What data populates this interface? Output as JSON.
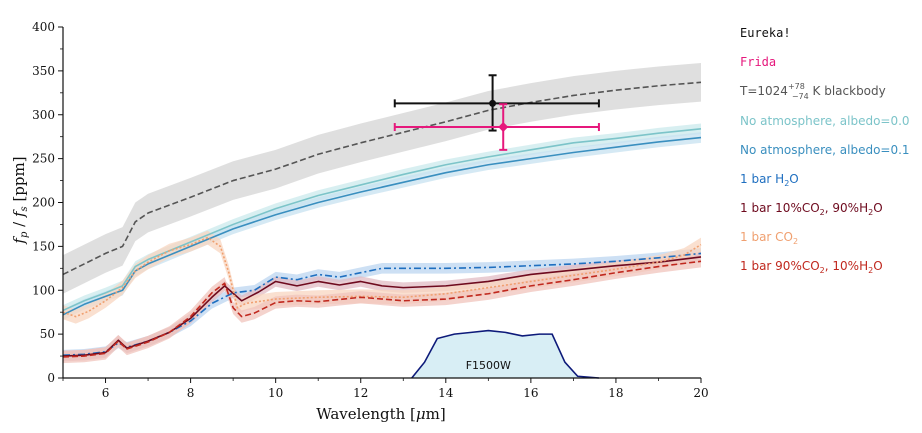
{
  "chart_data": {
    "type": "line",
    "xlabel": "Wavelength [μm]",
    "ylabel": "f_p / f_s [ppm]",
    "xlim": [
      5,
      20
    ],
    "ylim": [
      0,
      400
    ],
    "xticks": [
      6,
      8,
      10,
      12,
      14,
      16,
      18,
      20
    ],
    "yticks": [
      0,
      50,
      100,
      150,
      200,
      250,
      300,
      350,
      400
    ],
    "grid": false,
    "legend_position": "right",
    "filter_label": "F1500W",
    "filter_curve": {
      "x": [
        13.2,
        13.5,
        13.8,
        14.2,
        14.6,
        15.0,
        15.4,
        15.8,
        16.2,
        16.5,
        16.8,
        17.1,
        17.6
      ],
      "y": [
        0,
        18,
        45,
        50,
        52,
        54,
        52,
        48,
        50,
        50,
        18,
        2,
        0
      ]
    },
    "series": [
      {
        "name": "T=1024 K blackbody",
        "name_sup": "+78",
        "name_sub": "−74",
        "color": "#555555",
        "band_color": "#d4d4d4",
        "style": "dashed",
        "x": [
          5,
          5.5,
          6,
          6.4,
          6.7,
          7,
          8,
          9,
          10,
          11,
          12,
          13,
          14,
          15,
          16,
          17,
          18,
          19,
          20
        ],
        "y": [
          118,
          130,
          142,
          150,
          178,
          188,
          206,
          225,
          238,
          255,
          268,
          280,
          292,
          305,
          314,
          322,
          328,
          333,
          337
        ],
        "band": 22
      },
      {
        "name": "No atmosphere, albedo=0.0",
        "color": "#7cc4c9",
        "band_color": "#cbe9ec",
        "style": "solid",
        "x": [
          5,
          5.5,
          6,
          6.4,
          6.7,
          7,
          8,
          9,
          10,
          11,
          12,
          13,
          14,
          15,
          16,
          17,
          18,
          19,
          20
        ],
        "y": [
          77,
          88,
          97,
          105,
          127,
          135,
          155,
          175,
          193,
          208,
          220,
          232,
          243,
          252,
          260,
          268,
          273,
          279,
          284
        ],
        "band": 6
      },
      {
        "name": "No atmosphere, albedo=0.1",
        "color": "#3a8fbf",
        "band_color": "#c7e2f0",
        "style": "solid",
        "x": [
          5,
          5.5,
          6,
          6.4,
          6.7,
          7,
          8,
          9,
          10,
          11,
          12,
          13,
          14,
          15,
          16,
          17,
          18,
          19,
          20
        ],
        "y": [
          72,
          84,
          93,
          100,
          122,
          130,
          150,
          170,
          186,
          200,
          212,
          223,
          234,
          243,
          250,
          257,
          263,
          269,
          274
        ],
        "band": 6
      },
      {
        "name": "1 bar H2O",
        "formula": "H2O",
        "prefix": "1 bar ",
        "color": "#1f6fc0",
        "band_color": "#bcd6f0",
        "style": "dashdot",
        "x": [
          5,
          5.5,
          6,
          6.3,
          6.5,
          7,
          7.5,
          8,
          8.5,
          9,
          9.5,
          10,
          10.5,
          11,
          11.5,
          12,
          12.5,
          13,
          14,
          15,
          16,
          17,
          18,
          19,
          20
        ],
        "y": [
          26,
          27,
          30,
          40,
          35,
          42,
          52,
          65,
          85,
          97,
          100,
          115,
          112,
          118,
          115,
          120,
          125,
          125,
          125,
          126,
          128,
          130,
          133,
          137,
          142
        ],
        "band": 6
      },
      {
        "name": "1 bar 10%CO2, 90%H2O",
        "prefix": "1 bar ",
        "color": "#6e0a1e",
        "band_color": "#e2bcc4",
        "style": "solid",
        "x": [
          5,
          5.5,
          6,
          6.3,
          6.5,
          7,
          7.5,
          8,
          8.5,
          8.8,
          9.2,
          9.6,
          10,
          10.5,
          11,
          11.5,
          12,
          12.5,
          13,
          14,
          15,
          16,
          17,
          18,
          19,
          20
        ],
        "y": [
          25,
          26,
          29,
          43,
          34,
          42,
          52,
          68,
          92,
          105,
          88,
          98,
          110,
          105,
          110,
          106,
          110,
          105,
          103,
          105,
          110,
          118,
          123,
          128,
          132,
          138
        ],
        "band": 6
      },
      {
        "name": "1 bar CO2",
        "prefix": "1 bar ",
        "color": "#f0a070",
        "band_color": "#f8d5c0",
        "style": "dotted",
        "x": [
          5,
          5.3,
          5.6,
          6,
          6.4,
          6.7,
          7,
          7.5,
          8,
          8.4,
          8.7,
          8.9,
          9.1,
          9.3,
          10,
          11,
          12,
          13,
          14,
          15,
          16,
          17,
          18,
          19,
          19.6,
          20
        ],
        "y": [
          75,
          70,
          76,
          88,
          103,
          122,
          132,
          145,
          152,
          160,
          150,
          120,
          80,
          85,
          90,
          92,
          93,
          92,
          96,
          103,
          110,
          117,
          124,
          132,
          140,
          152
        ],
        "band": 8
      },
      {
        "name": "1 bar 90%CO2, 10%H2O",
        "prefix": "1 bar ",
        "color": "#c0281e",
        "band_color": "#f0c4bc",
        "style": "dashed",
        "x": [
          5,
          5.5,
          6,
          6.3,
          6.5,
          7,
          7.5,
          8,
          8.5,
          8.8,
          9.0,
          9.2,
          9.5,
          10,
          10.5,
          11,
          12,
          13,
          14,
          15,
          16,
          17,
          18,
          19,
          20
        ],
        "y": [
          24,
          25,
          28,
          42,
          33,
          41,
          52,
          70,
          97,
          108,
          80,
          70,
          74,
          86,
          88,
          87,
          92,
          88,
          90,
          96,
          105,
          112,
          120,
          127,
          133
        ],
        "band": 7
      }
    ],
    "measurements": [
      {
        "name": "Eureka!",
        "color": "#111111",
        "x": 15.1,
        "y": 313,
        "xerr": [
          12.8,
          17.6
        ],
        "yerr": [
          282,
          345
        ]
      },
      {
        "name": "Frida",
        "color": "#e6187c",
        "x": 15.35,
        "y": 286,
        "xerr": [
          12.8,
          17.6
        ],
        "yerr": [
          260,
          312
        ]
      }
    ]
  },
  "legend": {
    "eureka": "Eureka!",
    "frida": "Frida",
    "blackbody_prefix": "T=1024",
    "blackbody_sup": "+78",
    "blackbody_sub": "−74",
    "blackbody_suffix": " K blackbody",
    "albedo0": "No atmosphere, albedo=0.0",
    "albedo1": "No atmosphere, albedo=0.1",
    "h2o_prefix": "1 bar H",
    "h2o_sub": "2",
    "h2o_suffix": "O",
    "mix1_a": "1 bar 10%CO",
    "mix1_sub1": "2",
    "mix1_b": ", 90%H",
    "mix1_sub2": "2",
    "mix1_c": "O",
    "co2_a": "1 bar CO",
    "co2_sub": "2",
    "mix2_a": "1 bar 90%CO",
    "mix2_sub1": "2",
    "mix2_b": ", 10%H",
    "mix2_sub2": "2",
    "mix2_c": "O"
  },
  "colors": {
    "eureka": "#111111",
    "frida": "#e6187c",
    "blackbody": "#555555",
    "albedo0": "#7cc4c9",
    "albedo1": "#3a8fbf",
    "h2o": "#1f6fc0",
    "mix1": "#6e0a1e",
    "co2": "#f0a070",
    "mix2": "#c0281e",
    "filter_line": "#0d1a7a",
    "filter_fill": "#d8eef5"
  }
}
